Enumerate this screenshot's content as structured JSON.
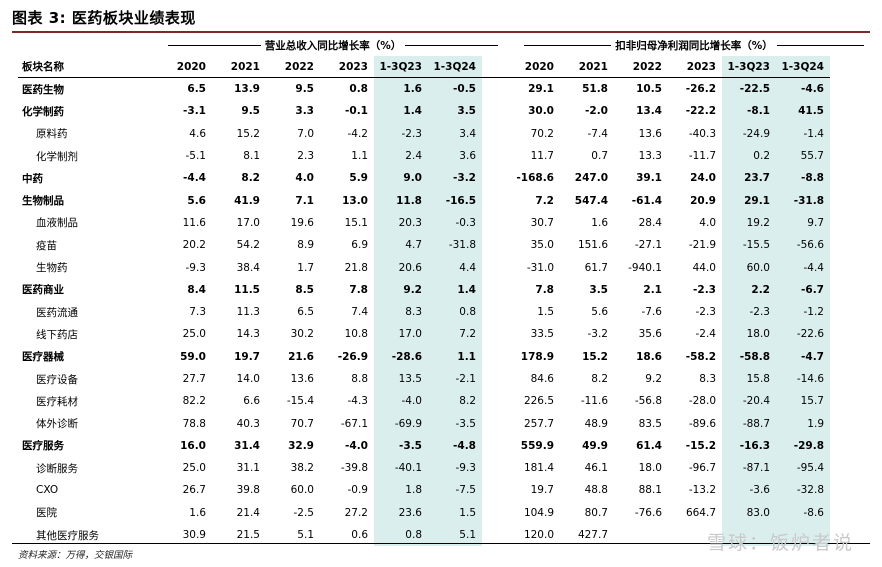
{
  "title": "图表 3: 医药板块业绩表现",
  "group_headers": {
    "revenue": "营业总收入同比增长率（%）",
    "profit": "扣非归母净利润同比增长率（%）"
  },
  "name_header": "板块名称",
  "years": [
    "2020",
    "2021",
    "2022",
    "2023",
    "1-3Q23",
    "1-3Q24"
  ],
  "rows": [
    {
      "name": "医药生物",
      "level": "major",
      "rev": [
        "6.5",
        "13.9",
        "9.5",
        "0.8",
        "1.6",
        "-0.5"
      ],
      "profit": [
        "29.1",
        "51.8",
        "10.5",
        "-26.2",
        "-22.5",
        "-4.6"
      ]
    },
    {
      "name": "化学制药",
      "level": "major",
      "rev": [
        "-3.1",
        "9.5",
        "3.3",
        "-0.1",
        "1.4",
        "3.5"
      ],
      "profit": [
        "30.0",
        "-2.0",
        "13.4",
        "-22.2",
        "-8.1",
        "41.5"
      ]
    },
    {
      "name": "原料药",
      "level": "sub",
      "rev": [
        "4.6",
        "15.2",
        "7.0",
        "-4.2",
        "-2.3",
        "3.4"
      ],
      "profit": [
        "70.2",
        "-7.4",
        "13.6",
        "-40.3",
        "-24.9",
        "-1.4"
      ]
    },
    {
      "name": "化学制剂",
      "level": "sub",
      "rev": [
        "-5.1",
        "8.1",
        "2.3",
        "1.1",
        "2.4",
        "3.6"
      ],
      "profit": [
        "11.7",
        "0.7",
        "13.3",
        "-11.7",
        "0.2",
        "55.7"
      ]
    },
    {
      "name": "中药",
      "level": "major",
      "rev": [
        "-4.4",
        "8.2",
        "4.0",
        "5.9",
        "9.0",
        "-3.2"
      ],
      "profit": [
        "-168.6",
        "247.0",
        "39.1",
        "24.0",
        "23.7",
        "-8.8"
      ]
    },
    {
      "name": "生物制品",
      "level": "major",
      "rev": [
        "5.6",
        "41.9",
        "7.1",
        "13.0",
        "11.8",
        "-16.5"
      ],
      "profit": [
        "7.2",
        "547.4",
        "-61.4",
        "20.9",
        "29.1",
        "-31.8"
      ]
    },
    {
      "name": "血液制品",
      "level": "sub",
      "rev": [
        "11.6",
        "17.0",
        "19.6",
        "15.1",
        "20.3",
        "-0.3"
      ],
      "profit": [
        "30.7",
        "1.6",
        "28.4",
        "4.0",
        "19.2",
        "9.7"
      ]
    },
    {
      "name": "疫苗",
      "level": "sub",
      "rev": [
        "20.2",
        "54.2",
        "8.9",
        "6.9",
        "4.7",
        "-31.8"
      ],
      "profit": [
        "35.0",
        "151.6",
        "-27.1",
        "-21.9",
        "-15.5",
        "-56.6"
      ]
    },
    {
      "name": "生物药",
      "level": "sub",
      "rev": [
        "-9.3",
        "38.4",
        "1.7",
        "21.8",
        "20.6",
        "4.4"
      ],
      "profit": [
        "-31.0",
        "61.7",
        "-940.1",
        "44.0",
        "60.0",
        "-4.4"
      ]
    },
    {
      "name": "医药商业",
      "level": "major",
      "rev": [
        "8.4",
        "11.5",
        "8.5",
        "7.8",
        "9.2",
        "1.4"
      ],
      "profit": [
        "7.8",
        "3.5",
        "2.1",
        "-2.3",
        "2.2",
        "-6.7"
      ]
    },
    {
      "name": "医药流通",
      "level": "sub",
      "rev": [
        "7.3",
        "11.3",
        "6.5",
        "7.4",
        "8.3",
        "0.8"
      ],
      "profit": [
        "1.5",
        "5.6",
        "-7.6",
        "-2.3",
        "-2.3",
        "-1.2"
      ]
    },
    {
      "name": "线下药店",
      "level": "sub",
      "rev": [
        "25.0",
        "14.3",
        "30.2",
        "10.8",
        "17.0",
        "7.2"
      ],
      "profit": [
        "33.5",
        "-3.2",
        "35.6",
        "-2.4",
        "18.0",
        "-22.6"
      ]
    },
    {
      "name": "医疗器械",
      "level": "major",
      "rev": [
        "59.0",
        "19.7",
        "21.6",
        "-26.9",
        "-28.6",
        "1.1"
      ],
      "profit": [
        "178.9",
        "15.2",
        "18.6",
        "-58.2",
        "-58.8",
        "-4.7"
      ]
    },
    {
      "name": "医疗设备",
      "level": "sub",
      "rev": [
        "27.7",
        "14.0",
        "13.6",
        "8.8",
        "13.5",
        "-2.1"
      ],
      "profit": [
        "84.6",
        "8.2",
        "9.2",
        "8.3",
        "15.8",
        "-14.6"
      ]
    },
    {
      "name": "医疗耗材",
      "level": "sub",
      "rev": [
        "82.2",
        "6.6",
        "-15.4",
        "-4.3",
        "-4.0",
        "8.2"
      ],
      "profit": [
        "226.5",
        "-11.6",
        "-56.8",
        "-28.0",
        "-20.4",
        "15.7"
      ]
    },
    {
      "name": "体外诊断",
      "level": "sub",
      "rev": [
        "78.8",
        "40.3",
        "70.7",
        "-67.1",
        "-69.9",
        "-3.5"
      ],
      "profit": [
        "257.7",
        "48.9",
        "83.5",
        "-89.6",
        "-88.7",
        "1.9"
      ]
    },
    {
      "name": "医疗服务",
      "level": "major",
      "rev": [
        "16.0",
        "31.4",
        "32.9",
        "-4.0",
        "-3.5",
        "-4.8"
      ],
      "profit": [
        "559.9",
        "49.9",
        "61.4",
        "-15.2",
        "-16.3",
        "-29.8"
      ]
    },
    {
      "name": "诊断服务",
      "level": "sub",
      "rev": [
        "25.0",
        "31.1",
        "38.2",
        "-39.8",
        "-40.1",
        "-9.3"
      ],
      "profit": [
        "181.4",
        "46.1",
        "18.0",
        "-96.7",
        "-87.1",
        "-95.4"
      ]
    },
    {
      "name": "CXO",
      "level": "sub",
      "rev": [
        "26.7",
        "39.8",
        "60.0",
        "-0.9",
        "1.8",
        "-7.5"
      ],
      "profit": [
        "19.7",
        "48.8",
        "88.1",
        "-13.2",
        "-3.6",
        "-32.8"
      ]
    },
    {
      "name": "医院",
      "level": "sub",
      "rev": [
        "1.6",
        "21.4",
        "-2.5",
        "27.2",
        "23.6",
        "1.5"
      ],
      "profit": [
        "104.9",
        "80.7",
        "-76.6",
        "664.7",
        "83.0",
        "-8.6"
      ]
    },
    {
      "name": "其他医疗服务",
      "level": "sub",
      "rev": [
        "30.9",
        "21.5",
        "5.1",
        "0.6",
        "0.8",
        "5.1"
      ],
      "profit": [
        "120.0",
        "427.7",
        "",
        "",
        "",
        ""
      ]
    }
  ],
  "source": "资料来源：万得，交银国际",
  "watermark": "雪球：饭炉者说",
  "colors": {
    "highlight": "#dbeeee",
    "title_rule": "#7a2a2a"
  }
}
